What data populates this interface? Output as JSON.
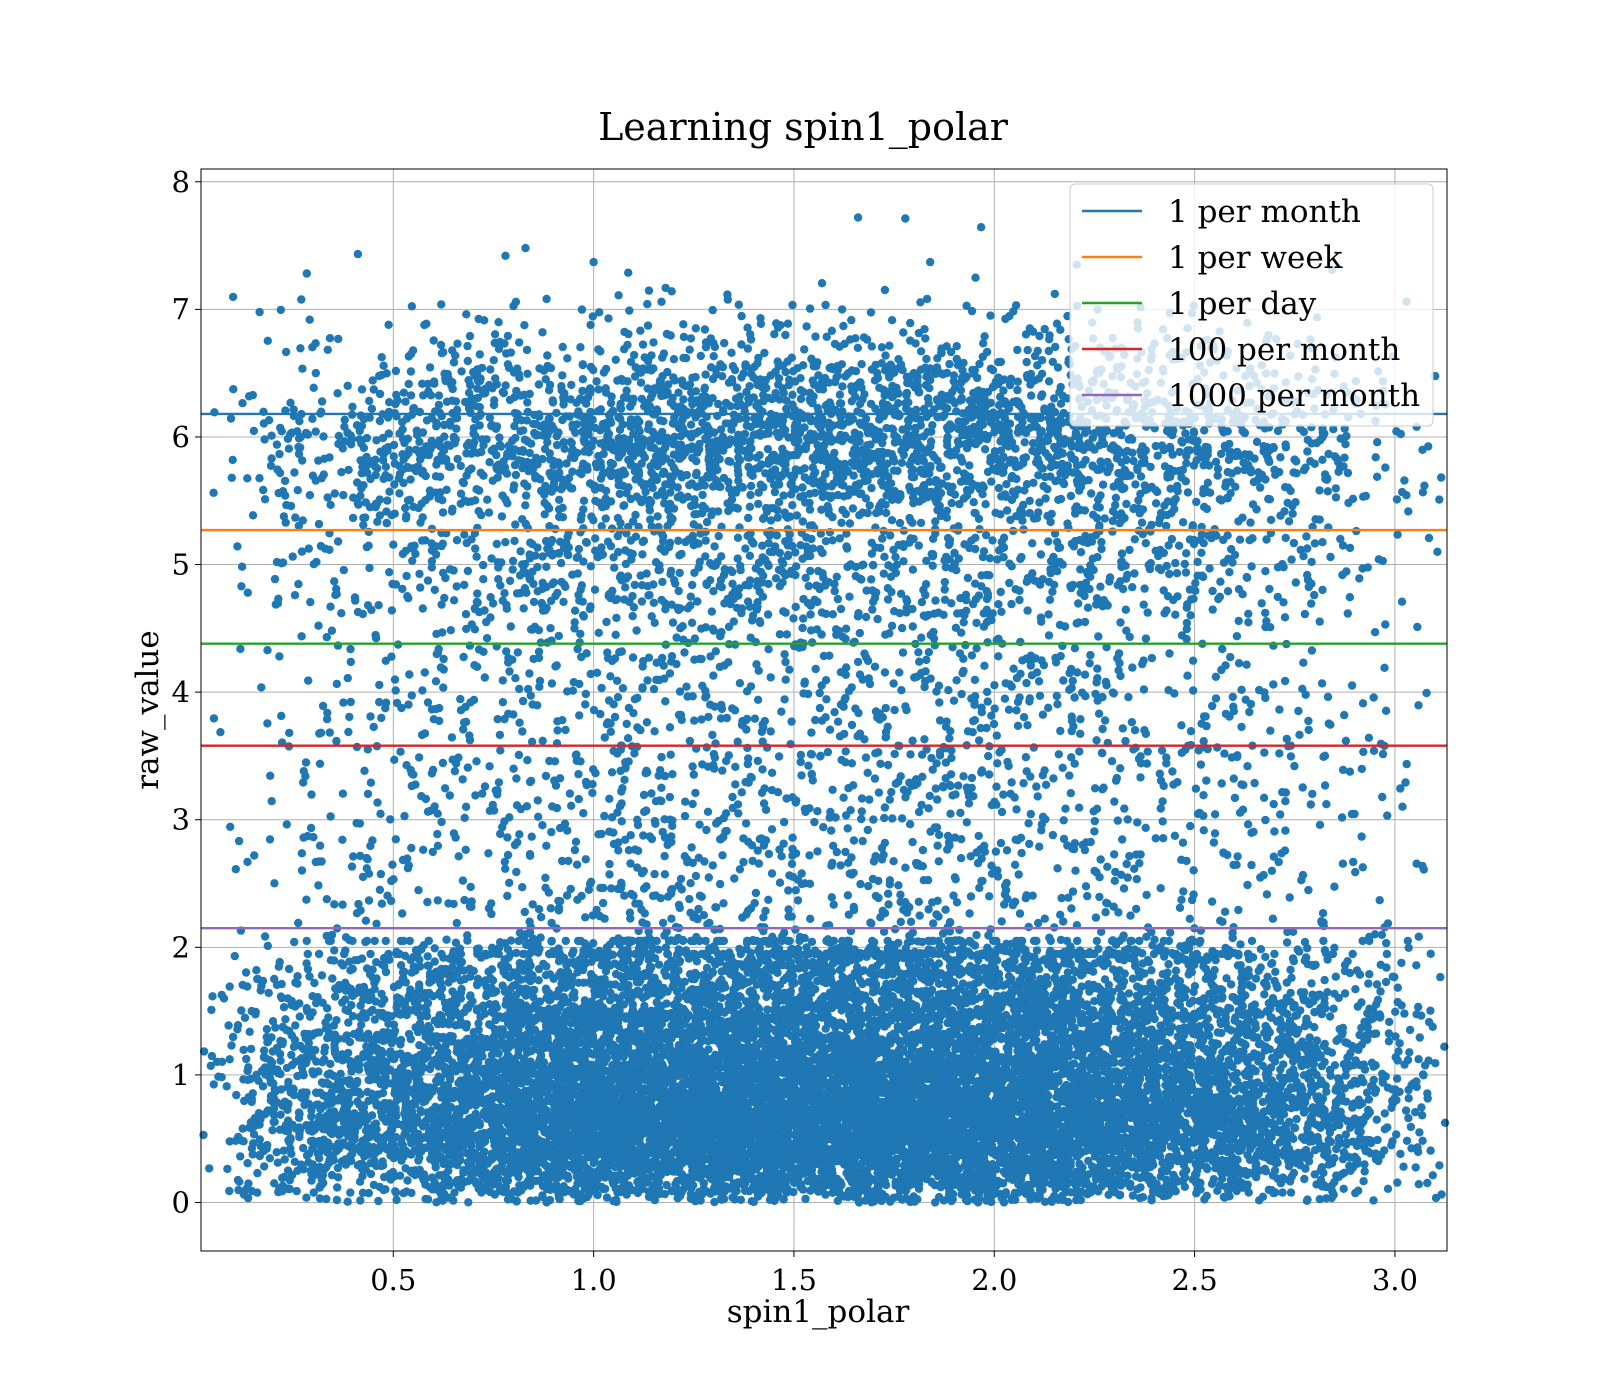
{
  "chart_data": {
    "type": "scatter",
    "title": "Learning spin1_polar",
    "xlabel": "spin1_polar",
    "ylabel": "raw_value",
    "xlim": [
      0.02,
      3.13
    ],
    "ylim": [
      -0.38,
      8.1
    ],
    "x_ticks": [
      0.5,
      1.0,
      1.5,
      2.0,
      2.5,
      3.0
    ],
    "x_tick_labels": [
      "0.5",
      "1.0",
      "1.5",
      "2.0",
      "2.5",
      "3.0"
    ],
    "y_ticks": [
      0,
      1,
      2,
      3,
      4,
      5,
      6,
      7,
      8
    ],
    "y_tick_labels": [
      "0",
      "1",
      "2",
      "3",
      "4",
      "5",
      "6",
      "7",
      "8"
    ],
    "grid": true,
    "legend_position": "top-right",
    "scatter_color": "#1f77b4",
    "scatter_description": "approx. 20,000 points; dense band from y=0 to y=2 across x, sparser cloud between y=2 and y=5, second dense band around y=5.5 to y=6.8; extreme point near (1.66, 7.72)",
    "highlighted_points": [
      {
        "x": 1.66,
        "y": 7.72
      },
      {
        "x": 1.84,
        "y": 7.37
      },
      {
        "x": 0.83,
        "y": 7.48
      },
      {
        "x": 0.78,
        "y": 7.42
      },
      {
        "x": 1.0,
        "y": 7.37
      }
    ],
    "series": [
      {
        "name": "1 per month",
        "y": 6.18,
        "color": "#1f77b4"
      },
      {
        "name": "1 per week",
        "y": 5.27,
        "color": "#ff7f0e"
      },
      {
        "name": "1 per day",
        "y": 4.38,
        "color": "#2ca02c"
      },
      {
        "name": "100 per month",
        "y": 3.58,
        "color": "#d62728"
      },
      {
        "name": "1000 per month",
        "y": 2.15,
        "color": "#9467bd"
      }
    ]
  }
}
